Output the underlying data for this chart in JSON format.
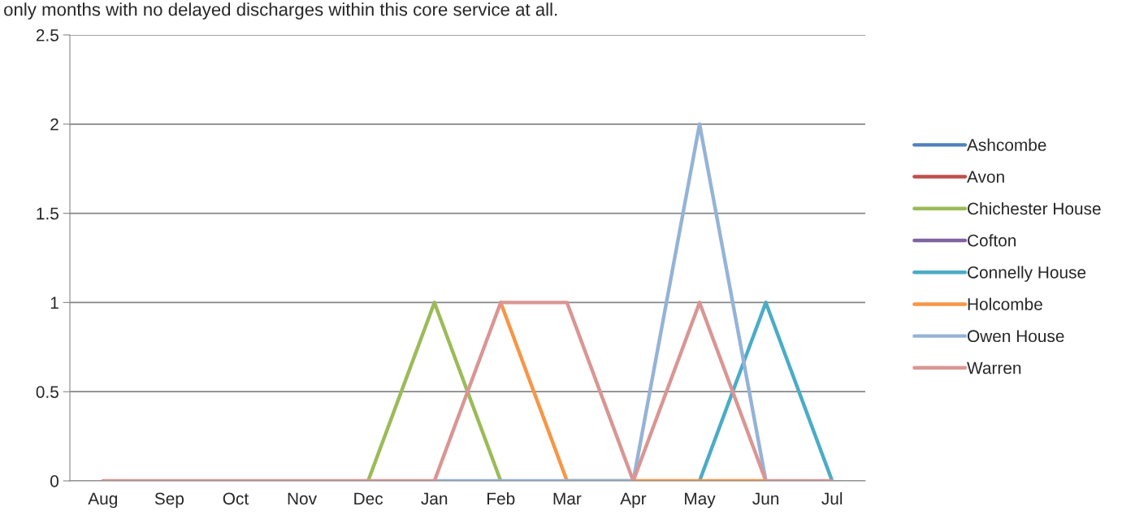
{
  "chart_data": {
    "type": "line",
    "annotations": [
      "only months with no delayed discharges within this core service at all."
    ],
    "categories": [
      "Aug",
      "Sep",
      "Oct",
      "Nov",
      "Dec",
      "Jan",
      "Feb",
      "Mar",
      "Apr",
      "May",
      "Jun",
      "Jul"
    ],
    "series": [
      {
        "name": "Ashcombe",
        "color": "#4f81bd",
        "values": [
          null,
          null,
          null,
          null,
          null,
          null,
          null,
          null,
          null,
          null,
          null,
          null
        ]
      },
      {
        "name": "Avon",
        "color": "#c0504d",
        "values": [
          null,
          null,
          null,
          null,
          null,
          null,
          null,
          null,
          null,
          null,
          null,
          null
        ]
      },
      {
        "name": "Chichester House",
        "color": "#9bbb59",
        "values": [
          null,
          null,
          null,
          null,
          0,
          1,
          0,
          null,
          null,
          null,
          null,
          null
        ]
      },
      {
        "name": "Cofton",
        "color": "#8064a2",
        "values": [
          null,
          null,
          null,
          null,
          null,
          null,
          null,
          null,
          null,
          null,
          null,
          null
        ]
      },
      {
        "name": "Connelly House",
        "color": "#4bacc6",
        "values": [
          null,
          null,
          null,
          null,
          null,
          null,
          null,
          null,
          null,
          0,
          1,
          0
        ]
      },
      {
        "name": "Holcombe",
        "color": "#f79646",
        "values": [
          null,
          null,
          null,
          null,
          null,
          null,
          1,
          0,
          0,
          0,
          0,
          null
        ]
      },
      {
        "name": "Owen House",
        "color": "#95b3d7",
        "values": [
          null,
          null,
          null,
          null,
          null,
          0,
          0,
          0,
          0,
          2,
          0,
          null
        ]
      },
      {
        "name": "Warren",
        "color": "#d99694",
        "values": [
          0,
          0,
          0,
          0,
          0,
          0,
          1,
          1,
          0,
          1,
          0,
          0
        ]
      }
    ],
    "ylim": [
      0,
      2.5
    ],
    "yticks": [
      0,
      0.5,
      1,
      1.5,
      2,
      2.5
    ],
    "grid": "y",
    "legend": "right",
    "marker": "none",
    "line_style": "solid"
  }
}
